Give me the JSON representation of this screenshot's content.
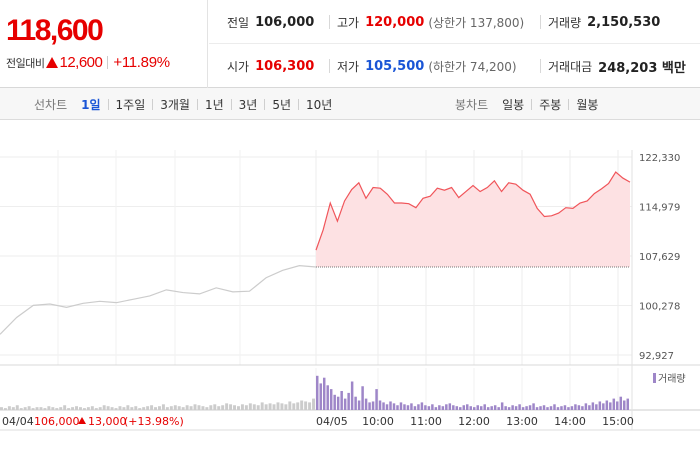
{
  "quote": {
    "price": "118,600",
    "change_label": "전일대비",
    "change_amount": "12,600",
    "change_percent": "+11.89%",
    "direction_icon": "up-triangle-icon",
    "colors": {
      "up": "#e60000",
      "down": "#1a55d6"
    }
  },
  "stats": {
    "prev_close_label": "전일",
    "prev_close": "106,000",
    "high_label": "고가",
    "high": "120,000",
    "upper_limit": "(상한가 137,800)",
    "volume_label": "거래량",
    "volume": "2,150,530",
    "open_label": "시가",
    "open": "106,300",
    "low_label": "저가",
    "low": "105,500",
    "lower_limit": "(하한가 74,200)",
    "trade_value_label": "거래대금",
    "trade_value": "248,203 백만"
  },
  "tabs": {
    "line_title": "선차트",
    "line": [
      "1일",
      "1주일",
      "3개월",
      "1년",
      "3년",
      "5년",
      "10년"
    ],
    "line_active": 0,
    "candle_title": "봉차트",
    "candle": [
      "일봉",
      "주봉",
      "월봉"
    ]
  },
  "chart_data": {
    "type": "line",
    "title": "",
    "xlabel": "",
    "ylabel": "",
    "y_ticks": [
      "122,330",
      "114,979",
      "107,629",
      "100,278",
      "92,927"
    ],
    "y_tick_values": [
      122330,
      114979,
      107629,
      100278,
      92927
    ],
    "ylim": [
      92927,
      122330
    ],
    "x_tick_labels": [
      "04/05",
      "10:00",
      "11:00",
      "12:00",
      "13:00",
      "14:00",
      "15:00"
    ],
    "grid": true,
    "legend": "none",
    "reference_line": 106000,
    "series": [
      {
        "session": "04/04",
        "color": "#cccccc",
        "values": [
          96000,
          98500,
          100300,
          100500,
          100000,
          100600,
          100900,
          100700,
          101200,
          101700,
          102600,
          102200,
          102000,
          102900,
          102300,
          102400,
          104400,
          105500,
          106200,
          106000
        ]
      },
      {
        "session": "04/05",
        "color": "#f0555a",
        "fill": "#fde1e3",
        "values": [
          108500,
          111500,
          115500,
          112800,
          115800,
          117500,
          118500,
          116200,
          117800,
          117700,
          116800,
          115500,
          115500,
          115400,
          114800,
          116200,
          116500,
          117700,
          117400,
          117800,
          116300,
          117200,
          118100,
          117200,
          117800,
          118800,
          117200,
          118500,
          118300,
          117400,
          116800,
          114700,
          113500,
          113600,
          114000,
          114800,
          114700,
          115500,
          115800,
          116900,
          117600,
          118400,
          120100,
          119200,
          118600
        ]
      }
    ],
    "volume_legend": "거래량",
    "volume_colors": {
      "prev": "#cccccc",
      "today": "#9e86c8"
    },
    "volume_prev": [
      3,
      2,
      4,
      3,
      5,
      2,
      3,
      4,
      2,
      3,
      3,
      2,
      4,
      3,
      2,
      3,
      5,
      2,
      3,
      4,
      3,
      2,
      3,
      4,
      2,
      3,
      5,
      4,
      3,
      2,
      4,
      3,
      5,
      3,
      4,
      2,
      3,
      4,
      5,
      3,
      4,
      6,
      3,
      4,
      5,
      4,
      3,
      5,
      4,
      6,
      5,
      4,
      3,
      5,
      6,
      4,
      5,
      7,
      6,
      5,
      4,
      6,
      5,
      7,
      6,
      5,
      8,
      6,
      7,
      6,
      8,
      7,
      6,
      9,
      7,
      8,
      10,
      9,
      8,
      12
    ],
    "volume_today": [
      36,
      28,
      34,
      26,
      22,
      16,
      14,
      20,
      12,
      18,
      30,
      14,
      10,
      25,
      12,
      8,
      9,
      22,
      10,
      8,
      6,
      9,
      7,
      5,
      8,
      6,
      5,
      7,
      4,
      6,
      8,
      5,
      4,
      6,
      3,
      5,
      4,
      6,
      7,
      5,
      4,
      3,
      5,
      6,
      4,
      3,
      5,
      4,
      6,
      3,
      4,
      5,
      3,
      8,
      4,
      3,
      5,
      4,
      6,
      3,
      4,
      5,
      7,
      3,
      4,
      5,
      3,
      4,
      6,
      3,
      4,
      5,
      3,
      4,
      6,
      5,
      4,
      7,
      5,
      8,
      6,
      9,
      7,
      10,
      8,
      12,
      9,
      14,
      10,
      12
    ]
  },
  "footer": {
    "date": "04/04",
    "close": "106,000",
    "change_amount": "13,000",
    "change_percent": "(+13.98%)"
  }
}
